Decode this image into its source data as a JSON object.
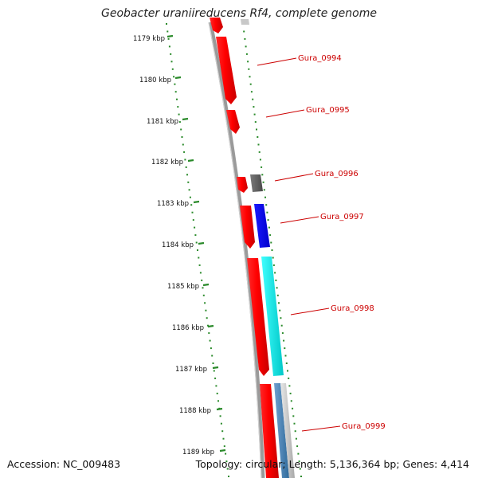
{
  "title": "Geobacter uraniireducens Rf4, complete genome",
  "accession": "Accession: NC_009483",
  "stats": "Topology: circular; Length: 5,136,364 bp; Genes: 4,414",
  "colors": {
    "forward_gene": "#ff0000",
    "rrna_gene": "#0000ff",
    "cyan_gene": "#00e5e5",
    "gray_gene": "#666666",
    "steelblue_gene": "#4682b4",
    "backbone": "#888888",
    "tick_dots": "#2a8a2a",
    "label": "#cc0000"
  },
  "ticks": [
    {
      "label": "1179 kbp"
    },
    {
      "label": "1180 kbp"
    },
    {
      "label": "1181 kbp"
    },
    {
      "label": "1182 kbp"
    },
    {
      "label": "1183 kbp"
    },
    {
      "label": "1184 kbp"
    },
    {
      "label": "1185 kbp"
    },
    {
      "label": "1186 kbp"
    },
    {
      "label": "1187 kbp"
    },
    {
      "label": "1188 kbp"
    },
    {
      "label": "1189 kbp"
    }
  ],
  "gene_labels": [
    {
      "label": "Gura_0994"
    },
    {
      "label": "Gura_0995"
    },
    {
      "label": "Gura_0996"
    },
    {
      "label": "Gura_0997"
    },
    {
      "label": "Gura_0998"
    },
    {
      "label": "Gura_0999"
    }
  ]
}
